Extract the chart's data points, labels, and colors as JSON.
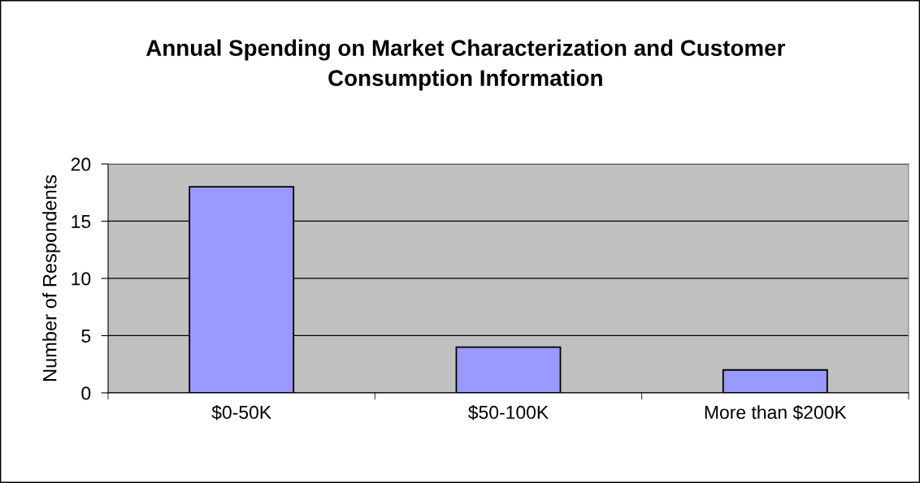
{
  "chart_data": {
    "type": "bar",
    "title": "Annual Spending on Market Characterization and Customer\nConsumption Information",
    "ylabel": "Number of Respondents",
    "categories": [
      "$0-50K",
      "$50-100K",
      "More than $200K"
    ],
    "values": [
      18,
      4,
      2
    ],
    "color": "#9999ff",
    "ylim": [
      0,
      20
    ],
    "yticks": [
      0,
      5,
      10,
      15,
      20
    ],
    "grid": "y",
    "legend": false
  }
}
